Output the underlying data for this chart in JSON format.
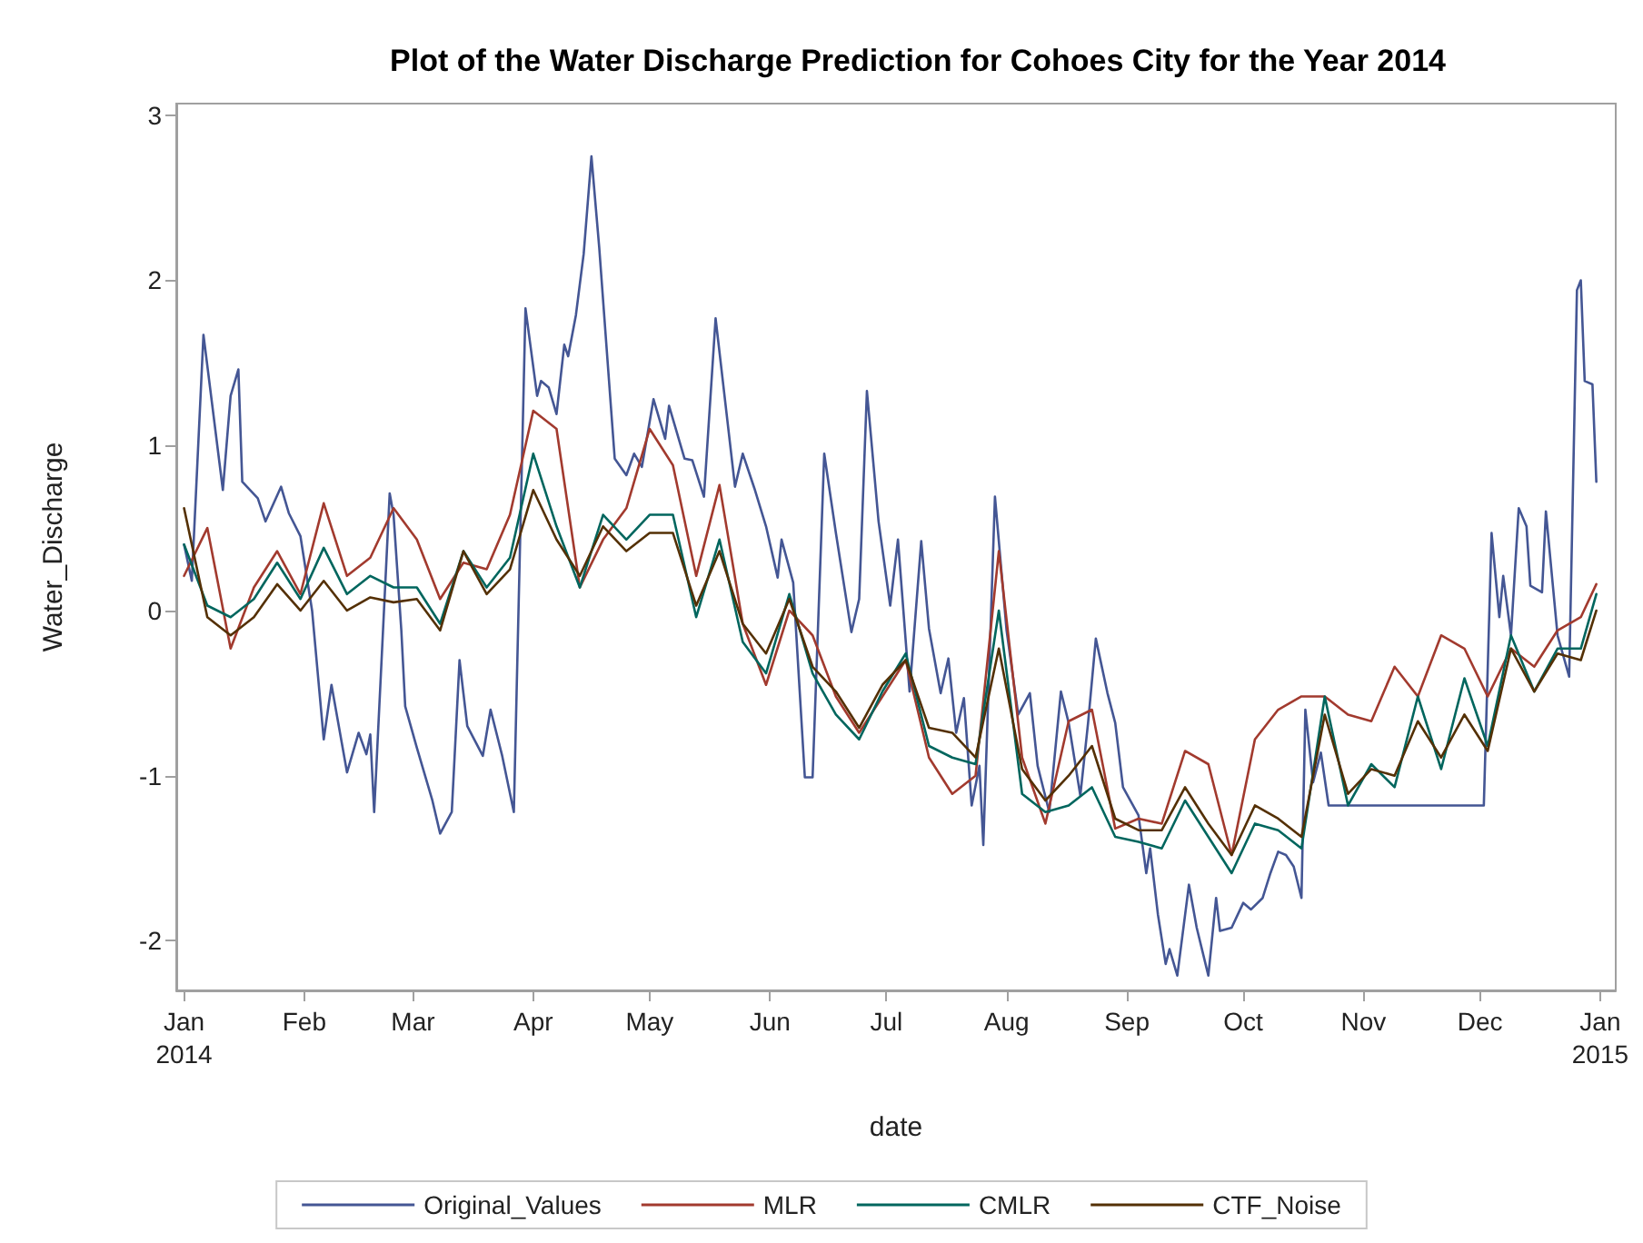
{
  "chart_data": {
    "type": "line",
    "title": "Plot of the Water Discharge Prediction for Cohoes City for the Year 2014",
    "xlabel": "date",
    "ylabel": "Water_Discharge",
    "xlim": [
      "2013-12-30",
      "2015-01-05"
    ],
    "ylim": [
      -2.3,
      3.07
    ],
    "yticks": [
      -2,
      -1,
      0,
      1,
      2,
      3
    ],
    "xticks": [
      {
        "value": "2014-01-01",
        "label": "Jan\n2014"
      },
      {
        "value": "2014-02-01",
        "label": "Feb"
      },
      {
        "value": "2014-03-01",
        "label": "Mar"
      },
      {
        "value": "2014-04-01",
        "label": "Apr"
      },
      {
        "value": "2014-05-01",
        "label": "May"
      },
      {
        "value": "2014-06-01",
        "label": "Jun"
      },
      {
        "value": "2014-07-01",
        "label": "Jul"
      },
      {
        "value": "2014-08-01",
        "label": "Aug"
      },
      {
        "value": "2014-09-01",
        "label": "Sep"
      },
      {
        "value": "2014-10-01",
        "label": "Oct"
      },
      {
        "value": "2014-11-01",
        "label": "Nov"
      },
      {
        "value": "2014-12-01",
        "label": "Dec"
      },
      {
        "value": "2015-01-01",
        "label": "Jan\n2015"
      }
    ],
    "grid": false,
    "legend": "bottom",
    "marker": "none",
    "line_style": "solid",
    "x": [
      "2014-01-01",
      "2014-01-07",
      "2014-01-13",
      "2014-01-19",
      "2014-01-25",
      "2014-01-31",
      "2014-02-06",
      "2014-02-12",
      "2014-02-18",
      "2014-02-24",
      "2014-03-02",
      "2014-03-08",
      "2014-03-14",
      "2014-03-20",
      "2014-03-26",
      "2014-04-01",
      "2014-04-07",
      "2014-04-13",
      "2014-04-19",
      "2014-04-25",
      "2014-05-01",
      "2014-05-07",
      "2014-05-13",
      "2014-05-19",
      "2014-05-25",
      "2014-05-31",
      "2014-06-06",
      "2014-06-12",
      "2014-06-18",
      "2014-06-24",
      "2014-06-30",
      "2014-07-06",
      "2014-07-12",
      "2014-07-18",
      "2014-07-24",
      "2014-07-30",
      "2014-08-05",
      "2014-08-11",
      "2014-08-17",
      "2014-08-23",
      "2014-08-29",
      "2014-09-04",
      "2014-09-10",
      "2014-09-16",
      "2014-09-22",
      "2014-09-28",
      "2014-10-04",
      "2014-10-10",
      "2014-10-16",
      "2014-10-22",
      "2014-10-28",
      "2014-11-03",
      "2014-11-09",
      "2014-11-15",
      "2014-11-21",
      "2014-11-27",
      "2014-12-03",
      "2014-12-09",
      "2014-12-15",
      "2014-12-21",
      "2014-12-27",
      "2014-12-31"
    ],
    "series": [
      {
        "name": "Original_Values",
        "color": "#445694",
        "x": [
          "2014-01-01",
          "2014-01-03",
          "2014-01-06",
          "2014-01-11",
          "2014-01-13",
          "2014-01-15",
          "2014-01-16",
          "2014-01-20",
          "2014-01-22",
          "2014-01-26",
          "2014-01-28",
          "2014-01-31",
          "2014-02-03",
          "2014-02-06",
          "2014-02-08",
          "2014-02-12",
          "2014-02-15",
          "2014-02-17",
          "2014-02-18",
          "2014-02-19",
          "2014-02-23",
          "2014-02-24",
          "2014-02-26",
          "2014-02-27",
          "2014-03-02",
          "2014-03-06",
          "2014-03-08",
          "2014-03-11",
          "2014-03-13",
          "2014-03-15",
          "2014-03-19",
          "2014-03-21",
          "2014-03-24",
          "2014-03-27",
          "2014-03-30",
          "2014-04-02",
          "2014-04-03",
          "2014-04-05",
          "2014-04-07",
          "2014-04-09",
          "2014-04-10",
          "2014-04-12",
          "2014-04-14",
          "2014-04-16",
          "2014-04-18",
          "2014-04-22",
          "2014-04-25",
          "2014-04-27",
          "2014-04-29",
          "2014-05-02",
          "2014-05-05",
          "2014-05-06",
          "2014-05-10",
          "2014-05-12",
          "2014-05-15",
          "2014-05-18",
          "2014-05-23",
          "2014-05-25",
          "2014-05-28",
          "2014-05-31",
          "2014-06-03",
          "2014-06-04",
          "2014-06-07",
          "2014-06-10",
          "2014-06-12",
          "2014-06-15",
          "2014-06-18",
          "2014-06-22",
          "2014-06-24",
          "2014-06-26",
          "2014-06-29",
          "2014-07-02",
          "2014-07-04",
          "2014-07-07",
          "2014-07-10",
          "2014-07-12",
          "2014-07-15",
          "2014-07-17",
          "2014-07-19",
          "2014-07-21",
          "2014-07-23",
          "2014-07-25",
          "2014-07-26",
          "2014-07-29",
          "2014-08-01",
          "2014-08-04",
          "2014-08-07",
          "2014-08-09",
          "2014-08-12",
          "2014-08-15",
          "2014-08-17",
          "2014-08-20",
          "2014-08-22",
          "2014-08-24",
          "2014-08-27",
          "2014-08-29",
          "2014-08-31",
          "2014-09-04",
          "2014-09-06",
          "2014-09-07",
          "2014-09-09",
          "2014-09-11",
          "2014-09-12",
          "2014-09-14",
          "2014-09-17",
          "2014-09-19",
          "2014-09-22",
          "2014-09-24",
          "2014-09-25",
          "2014-09-28",
          "2014-10-01",
          "2014-10-03",
          "2014-10-06",
          "2014-10-08",
          "2014-10-10",
          "2014-10-12",
          "2014-10-14",
          "2014-10-16",
          "2014-10-17",
          "2014-10-19",
          "2014-10-21",
          "2014-10-23",
          "2014-12-02",
          "2014-12-04",
          "2014-12-06",
          "2014-12-07",
          "2014-12-09",
          "2014-12-11",
          "2014-12-13",
          "2014-12-14",
          "2014-12-17",
          "2014-12-18",
          "2014-12-21",
          "2014-12-24",
          "2014-12-26",
          "2014-12-27",
          "2014-12-28",
          "2014-12-30",
          "2014-12-31"
        ],
        "values": [
          0.4,
          0.18,
          1.67,
          0.73,
          1.3,
          1.46,
          0.78,
          0.68,
          0.54,
          0.75,
          0.59,
          0.45,
          0.0,
          -0.78,
          -0.45,
          -0.98,
          -0.74,
          -0.87,
          -0.75,
          -1.22,
          0.71,
          0.58,
          -0.12,
          -0.58,
          -0.83,
          -1.15,
          -1.35,
          -1.22,
          -0.3,
          -0.7,
          -0.88,
          -0.6,
          -0.88,
          -1.22,
          1.83,
          1.3,
          1.39,
          1.35,
          1.19,
          1.61,
          1.54,
          1.79,
          2.16,
          2.75,
          2.2,
          0.92,
          0.82,
          0.95,
          0.87,
          1.28,
          1.04,
          1.24,
          0.92,
          0.91,
          0.69,
          1.77,
          0.75,
          0.95,
          0.74,
          0.51,
          0.2,
          0.43,
          0.17,
          -1.01,
          -1.01,
          0.95,
          0.47,
          -0.13,
          0.07,
          1.33,
          0.54,
          0.03,
          0.43,
          -0.49,
          0.42,
          -0.11,
          -0.5,
          -0.29,
          -0.74,
          -0.53,
          -1.18,
          -0.94,
          -1.42,
          0.69,
          -0.12,
          -0.63,
          -0.5,
          -0.94,
          -1.22,
          -0.49,
          -0.68,
          -1.12,
          -0.68,
          -0.17,
          -0.5,
          -0.68,
          -1.07,
          -1.24,
          -1.59,
          -1.44,
          -1.84,
          -2.14,
          -2.05,
          -2.21,
          -1.66,
          -1.92,
          -2.21,
          -1.74,
          -1.94,
          -1.92,
          -1.77,
          -1.81,
          -1.74,
          -1.59,
          -1.46,
          -1.48,
          -1.55,
          -1.74,
          -0.6,
          -1.04,
          -0.86,
          -1.18,
          -1.18,
          0.47,
          -0.04,
          0.21,
          -0.15,
          0.62,
          0.51,
          0.15,
          0.11,
          0.6,
          -0.15,
          -0.4,
          1.94,
          2.0,
          1.39,
          1.37,
          0.78
        ]
      },
      {
        "name": "MLR",
        "color": "#a23a2e",
        "values": [
          0.21,
          0.5,
          -0.23,
          0.14,
          0.36,
          0.1,
          0.65,
          0.21,
          0.32,
          0.62,
          0.43,
          0.07,
          0.29,
          0.25,
          0.58,
          1.21,
          1.1,
          0.14,
          0.43,
          0.62,
          1.1,
          0.88,
          0.21,
          0.76,
          -0.08,
          -0.45,
          0.0,
          -0.15,
          -0.52,
          -0.74,
          -0.52,
          -0.3,
          -0.89,
          -1.11,
          -1.0,
          0.36,
          -0.89,
          -1.29,
          -0.67,
          -0.6,
          -1.32,
          -1.26,
          -1.29,
          -0.85,
          -0.93,
          -1.48,
          -0.78,
          -0.6,
          -0.52,
          -0.52,
          -0.63,
          -0.67,
          -0.34,
          -0.52,
          -0.15,
          -0.23,
          -0.52,
          -0.23,
          -0.34,
          -0.12,
          -0.04,
          0.16
        ]
      },
      {
        "name": "CMLR",
        "color": "#01665e",
        "values": [
          0.4,
          0.03,
          -0.04,
          0.07,
          0.29,
          0.07,
          0.38,
          0.1,
          0.21,
          0.14,
          0.14,
          -0.08,
          0.36,
          0.14,
          0.32,
          0.95,
          0.51,
          0.14,
          0.58,
          0.43,
          0.58,
          0.58,
          -0.04,
          0.43,
          -0.19,
          -0.38,
          0.1,
          -0.38,
          -0.63,
          -0.78,
          -0.49,
          -0.26,
          -0.82,
          -0.89,
          -0.93,
          0.0,
          -1.11,
          -1.22,
          -1.18,
          -1.07,
          -1.37,
          -1.4,
          -1.44,
          -1.15,
          -1.37,
          -1.59,
          -1.29,
          -1.33,
          -1.44,
          -0.52,
          -1.18,
          -0.93,
          -1.07,
          -0.52,
          -0.96,
          -0.41,
          -0.82,
          -0.15,
          -0.49,
          -0.23,
          -0.23,
          0.1
        ]
      },
      {
        "name": "CTF_Noise",
        "color": "#543005",
        "values": [
          0.62,
          -0.04,
          -0.15,
          -0.04,
          0.16,
          0.0,
          0.18,
          0.0,
          0.08,
          0.05,
          0.07,
          -0.12,
          0.36,
          0.1,
          0.25,
          0.73,
          0.43,
          0.21,
          0.51,
          0.36,
          0.47,
          0.47,
          0.03,
          0.36,
          -0.08,
          -0.26,
          0.07,
          -0.34,
          -0.49,
          -0.71,
          -0.45,
          -0.3,
          -0.71,
          -0.74,
          -0.89,
          -0.23,
          -0.96,
          -1.15,
          -1.0,
          -0.82,
          -1.26,
          -1.33,
          -1.33,
          -1.07,
          -1.29,
          -1.48,
          -1.18,
          -1.26,
          -1.37,
          -0.63,
          -1.11,
          -0.96,
          -1.0,
          -0.67,
          -0.89,
          -0.63,
          -0.85,
          -0.23,
          -0.49,
          -0.26,
          -0.3,
          0.0
        ]
      }
    ]
  }
}
